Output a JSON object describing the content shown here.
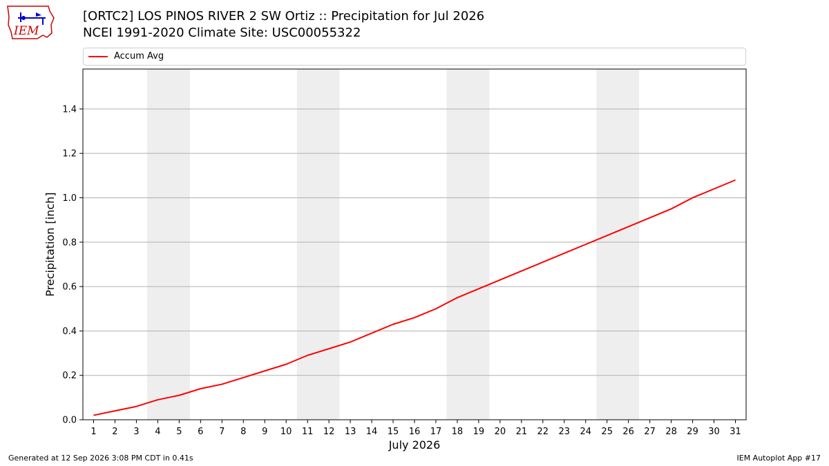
{
  "header": {
    "title_line1": "[ORTC2] LOS PINOS RIVER 2 SW Ortiz :: Precipitation for Jul 2026",
    "title_line2": "NCEI 1991-2020 Climate Site: USC00055322",
    "logo_text": "IEM"
  },
  "footer": {
    "generated": "Generated at 12 Sep 2026 3:08 PM CDT in 0.41s",
    "app": "IEM Autoplot App #17"
  },
  "colors": {
    "series": "#ff0000",
    "weekend_band": "#eeeeee",
    "grid": "#b0b0b0",
    "logo_red": "#cc0000",
    "logo_blue": "#0000cc"
  },
  "chart_data": {
    "type": "line",
    "title": "[ORTC2] LOS PINOS RIVER 2 SW Ortiz :: Precipitation for Jul 2026",
    "subtitle": "NCEI 1991-2020 Climate Site: USC00055322",
    "xlabel": "July 2026",
    "ylabel": "Precipitation [inch]",
    "x": [
      1,
      2,
      3,
      4,
      5,
      6,
      7,
      8,
      9,
      10,
      11,
      12,
      13,
      14,
      15,
      16,
      17,
      18,
      19,
      20,
      21,
      22,
      23,
      24,
      25,
      26,
      27,
      28,
      29,
      30,
      31
    ],
    "xlim": [
      0.5,
      31.5
    ],
    "ylim": [
      0,
      1.58
    ],
    "yticks": [
      0.0,
      0.2,
      0.4,
      0.6,
      0.8,
      1.0,
      1.2,
      1.4
    ],
    "ytick_labels": [
      "0.0",
      "0.2",
      "0.4",
      "0.6",
      "0.8",
      "1.0",
      "1.2",
      "1.4"
    ],
    "grid": "horizontal",
    "legend_position": "top",
    "weekend_bands": [
      [
        4,
        5
      ],
      [
        11,
        12
      ],
      [
        18,
        19
      ],
      [
        25,
        26
      ]
    ],
    "series": [
      {
        "name": "Accum Avg",
        "values": [
          0.02,
          0.04,
          0.06,
          0.09,
          0.11,
          0.14,
          0.16,
          0.19,
          0.22,
          0.25,
          0.29,
          0.32,
          0.35,
          0.39,
          0.43,
          0.46,
          0.5,
          0.55,
          0.59,
          0.63,
          0.67,
          0.71,
          0.75,
          0.79,
          0.83,
          0.87,
          0.91,
          0.95,
          1.0,
          1.04,
          1.08
        ]
      }
    ]
  }
}
